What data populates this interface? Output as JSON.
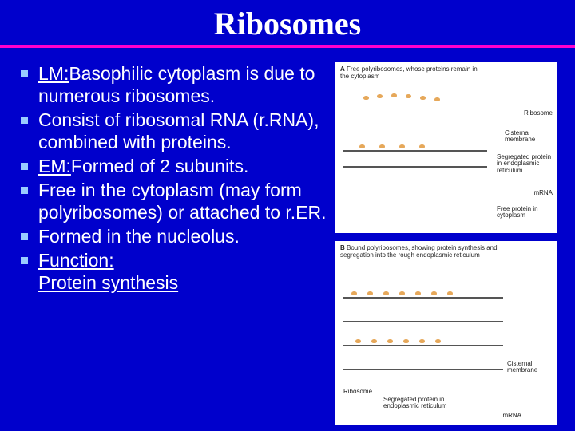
{
  "slide": {
    "title": "Ribosomes",
    "title_color": "#ffffff",
    "title_font": "Times New Roman",
    "title_fontsize": 40,
    "hr_color": "#ff00cc",
    "background_color": "#0000cc",
    "bullet_color": "#99ccff",
    "bullet_size": 9,
    "body_fontsize": 23,
    "bullets": [
      {
        "prefix": "LM:",
        "prefix_underline": true,
        "text": "Basophilic cytoplasm is due to numerous ribosomes."
      },
      {
        "prefix": "",
        "prefix_underline": false,
        "text": "Consist of ribosomal RNA (r.RNA), combined with proteins."
      },
      {
        "prefix": "EM:",
        "prefix_underline": true,
        "text": "Formed of 2 subunits."
      },
      {
        "prefix": "",
        "prefix_underline": false,
        "text": "Free in the cytoplasm (may form polyribosomes) or attached to r.ER."
      },
      {
        "prefix": "",
        "prefix_underline": false,
        "text": "Formed in the nucleolus."
      },
      {
        "prefix": "Function:",
        "prefix_underline": true,
        "text": "",
        "line2": "Protein synthesis",
        "line2_underline": true
      }
    ],
    "figureA": {
      "caption_bold": "A",
      "caption": "Free polyribosomes, whose proteins remain in the cytoplasm",
      "labels": {
        "ribosome": "Ribosome",
        "cisternal_membrane": "Cisternal membrane",
        "segregated_protein": "Segregated protein in endoplasmic reticulum",
        "mrna": "mRNA",
        "free_protein": "Free protein in cytoplasm"
      },
      "colors": {
        "membrane": "#555555",
        "ribosome": "#e6a85a",
        "bg": "#ffffff"
      }
    },
    "figureB": {
      "caption_bold": "B",
      "caption": "Bound polyribosomes, showing protein synthesis and segregation into the rough endoplasmic reticulum",
      "labels": {
        "ribosome": "Ribosome",
        "cisternal_membrane": "Cisternal membrane",
        "segregated_protein": "Segregated protein in endoplasmic reticulum",
        "mrna": "mRNA"
      },
      "colors": {
        "membrane": "#555555",
        "ribosome": "#e6a85a",
        "bg": "#ffffff"
      }
    }
  }
}
